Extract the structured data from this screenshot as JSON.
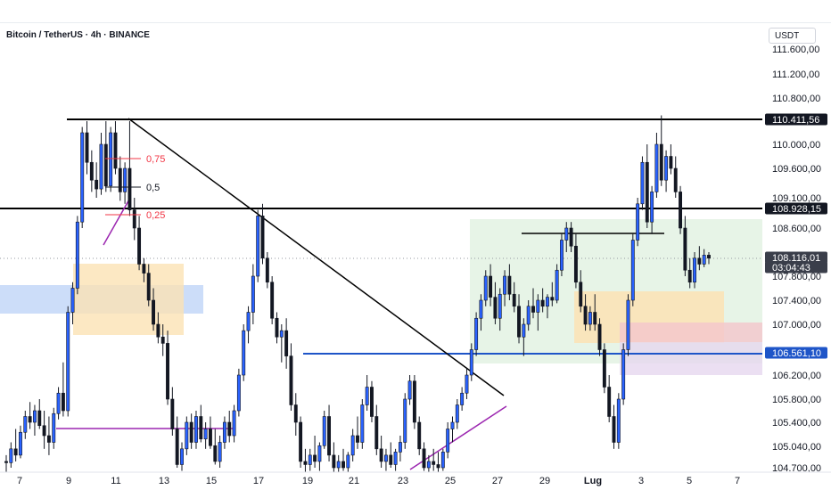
{
  "header": {
    "title": "Bitcoin / TetherUS · 4h · BINANCE",
    "currency": "USDT"
  },
  "colors": {
    "up": "#2962ff",
    "down": "#131722",
    "level_line": "#000000",
    "support_line": "#1e55c8",
    "trend_purple": "#9c27b0",
    "fib_red": "#f23645",
    "zone_orange": "#fbe2b4",
    "zone_blue": "#bbd2f7",
    "zone_green": "#d7ecd7",
    "zone_purple": "#e6d7ef",
    "zone_red": "#f4c6cc"
  },
  "chart_data": {
    "type": "candlestick",
    "ylim": [
      104700,
      111900
    ],
    "x_ticks": [
      "7",
      "9",
      "11",
      "13",
      "15",
      "17",
      "19",
      "21",
      "23",
      "25",
      "27",
      "29",
      "Lug",
      "3",
      "5",
      "7"
    ],
    "y_ticks": [
      "111.600,00",
      "111.200,00",
      "110.800,00",
      "110.000,00",
      "109.600,00",
      "109.100,00",
      "108.600,00",
      "107.800,00",
      "107.400,00",
      "107.000,00",
      "106.200,00",
      "105.800,00",
      "105.400,00",
      "105.040,00",
      "104.700,00"
    ],
    "price_tags": [
      {
        "label": "110.411,56",
        "value": 110411.56,
        "style": "dark-line"
      },
      {
        "label": "108.928,15",
        "value": 108928.15,
        "style": "dark-line"
      },
      {
        "label": "108.116,01",
        "value": 108116.01,
        "style": "current"
      },
      {
        "label": "03:04:43",
        "value": null,
        "style": "countdown"
      },
      {
        "label": "106.561,10",
        "value": 106561.1,
        "style": "blue-line"
      }
    ],
    "fib_labels": [
      {
        "label": "0,75",
        "value": 109700
      },
      {
        "label": "0,5",
        "value": 109350
      },
      {
        "label": "0,25",
        "value": 108950
      }
    ],
    "candles": [
      {
        "o": 104800,
        "h": 104900,
        "l": 104600,
        "c": 104780
      },
      {
        "o": 104780,
        "h": 105100,
        "l": 104700,
        "c": 105000
      },
      {
        "o": 105000,
        "h": 105300,
        "l": 104800,
        "c": 104900
      },
      {
        "o": 104900,
        "h": 105350,
        "l": 104850,
        "c": 105250
      },
      {
        "o": 105250,
        "h": 105600,
        "l": 105150,
        "c": 105500
      },
      {
        "o": 105500,
        "h": 105750,
        "l": 105300,
        "c": 105400
      },
      {
        "o": 105400,
        "h": 105700,
        "l": 105200,
        "c": 105600
      },
      {
        "o": 105600,
        "h": 105800,
        "l": 105300,
        "c": 105350
      },
      {
        "o": 105350,
        "h": 105600,
        "l": 105000,
        "c": 105200
      },
      {
        "o": 105200,
        "h": 105500,
        "l": 104900,
        "c": 105100
      },
      {
        "o": 105100,
        "h": 105650,
        "l": 105000,
        "c": 105550
      },
      {
        "o": 105550,
        "h": 106000,
        "l": 105450,
        "c": 105900
      },
      {
        "o": 105900,
        "h": 106400,
        "l": 105500,
        "c": 105600
      },
      {
        "o": 105600,
        "h": 107300,
        "l": 105500,
        "c": 107200
      },
      {
        "o": 107200,
        "h": 107700,
        "l": 107000,
        "c": 107600
      },
      {
        "o": 107600,
        "h": 108800,
        "l": 107500,
        "c": 108700
      },
      {
        "o": 108700,
        "h": 110300,
        "l": 108600,
        "c": 110200
      },
      {
        "o": 110200,
        "h": 110400,
        "l": 109500,
        "c": 109700
      },
      {
        "o": 109700,
        "h": 109900,
        "l": 109200,
        "c": 109400
      },
      {
        "o": 109400,
        "h": 109700,
        "l": 109100,
        "c": 109250
      },
      {
        "o": 109250,
        "h": 110200,
        "l": 109150,
        "c": 110000
      },
      {
        "o": 110000,
        "h": 110400,
        "l": 109200,
        "c": 109300
      },
      {
        "o": 109300,
        "h": 110300,
        "l": 109200,
        "c": 110200
      },
      {
        "o": 110200,
        "h": 110400,
        "l": 109500,
        "c": 109600
      },
      {
        "o": 109600,
        "h": 109800,
        "l": 109050,
        "c": 109200
      },
      {
        "o": 109200,
        "h": 109700,
        "l": 109000,
        "c": 109600
      },
      {
        "o": 109600,
        "h": 110400,
        "l": 108800,
        "c": 108900
      },
      {
        "o": 108900,
        "h": 109100,
        "l": 108400,
        "c": 108600
      },
      {
        "o": 108600,
        "h": 108800,
        "l": 107900,
        "c": 108000
      },
      {
        "o": 108000,
        "h": 108100,
        "l": 107700,
        "c": 107850
      },
      {
        "o": 107850,
        "h": 108000,
        "l": 107300,
        "c": 107400
      },
      {
        "o": 107400,
        "h": 107600,
        "l": 106900,
        "c": 107000
      },
      {
        "o": 107000,
        "h": 107200,
        "l": 106700,
        "c": 106800
      },
      {
        "o": 106800,
        "h": 107000,
        "l": 106500,
        "c": 106700
      },
      {
        "o": 106700,
        "h": 106900,
        "l": 105700,
        "c": 105800
      },
      {
        "o": 105800,
        "h": 106000,
        "l": 105200,
        "c": 105300
      },
      {
        "o": 105300,
        "h": 105500,
        "l": 104700,
        "c": 104750
      },
      {
        "o": 104750,
        "h": 105100,
        "l": 104650,
        "c": 105000
      },
      {
        "o": 105000,
        "h": 105500,
        "l": 104900,
        "c": 105400
      },
      {
        "o": 105400,
        "h": 105550,
        "l": 105000,
        "c": 105100
      },
      {
        "o": 105100,
        "h": 105600,
        "l": 105000,
        "c": 105500
      },
      {
        "o": 105500,
        "h": 105700,
        "l": 105100,
        "c": 105150
      },
      {
        "o": 105150,
        "h": 105400,
        "l": 105000,
        "c": 105300
      },
      {
        "o": 105300,
        "h": 105500,
        "l": 105000,
        "c": 105050
      },
      {
        "o": 105050,
        "h": 105300,
        "l": 104750,
        "c": 104800
      },
      {
        "o": 104800,
        "h": 105200,
        "l": 104700,
        "c": 105100
      },
      {
        "o": 105100,
        "h": 105500,
        "l": 105000,
        "c": 105400
      },
      {
        "o": 105400,
        "h": 105600,
        "l": 105100,
        "c": 105200
      },
      {
        "o": 105200,
        "h": 105700,
        "l": 105100,
        "c": 105600
      },
      {
        "o": 105600,
        "h": 106300,
        "l": 105500,
        "c": 106200
      },
      {
        "o": 106200,
        "h": 107000,
        "l": 106100,
        "c": 106900
      },
      {
        "o": 106900,
        "h": 107300,
        "l": 106700,
        "c": 107200
      },
      {
        "o": 107200,
        "h": 108000,
        "l": 107000,
        "c": 107800
      },
      {
        "o": 107800,
        "h": 108900,
        "l": 107700,
        "c": 108800
      },
      {
        "o": 108800,
        "h": 109000,
        "l": 108000,
        "c": 108100
      },
      {
        "o": 108100,
        "h": 108200,
        "l": 107600,
        "c": 107700
      },
      {
        "o": 107700,
        "h": 107800,
        "l": 107000,
        "c": 107100
      },
      {
        "o": 107100,
        "h": 107200,
        "l": 106700,
        "c": 106800
      },
      {
        "o": 106800,
        "h": 107000,
        "l": 106400,
        "c": 106900
      },
      {
        "o": 106900,
        "h": 107100,
        "l": 106300,
        "c": 106500
      },
      {
        "o": 106500,
        "h": 106700,
        "l": 105600,
        "c": 105700
      },
      {
        "o": 105700,
        "h": 105900,
        "l": 105200,
        "c": 105400
      },
      {
        "o": 105400,
        "h": 105500,
        "l": 104700,
        "c": 104800
      },
      {
        "o": 104800,
        "h": 105000,
        "l": 104600,
        "c": 104750
      },
      {
        "o": 104750,
        "h": 105000,
        "l": 104650,
        "c": 104900
      },
      {
        "o": 104900,
        "h": 105200,
        "l": 104700,
        "c": 104800
      },
      {
        "o": 104800,
        "h": 105100,
        "l": 104650,
        "c": 105050
      },
      {
        "o": 105050,
        "h": 105600,
        "l": 105000,
        "c": 105500
      },
      {
        "o": 105500,
        "h": 105700,
        "l": 104800,
        "c": 104900
      },
      {
        "o": 104900,
        "h": 105100,
        "l": 104600,
        "c": 104700
      },
      {
        "o": 104700,
        "h": 104900,
        "l": 104600,
        "c": 104800
      },
      {
        "o": 104800,
        "h": 105000,
        "l": 104650,
        "c": 104700
      },
      {
        "o": 104700,
        "h": 104950,
        "l": 104600,
        "c": 104900
      },
      {
        "o": 104900,
        "h": 105300,
        "l": 104800,
        "c": 105200
      },
      {
        "o": 105200,
        "h": 105500,
        "l": 105000,
        "c": 105100
      },
      {
        "o": 105100,
        "h": 105800,
        "l": 105000,
        "c": 105700
      },
      {
        "o": 105700,
        "h": 106200,
        "l": 105600,
        "c": 106000
      },
      {
        "o": 106000,
        "h": 106100,
        "l": 105400,
        "c": 105500
      },
      {
        "o": 105500,
        "h": 105700,
        "l": 104900,
        "c": 105000
      },
      {
        "o": 105000,
        "h": 105200,
        "l": 104700,
        "c": 104800
      },
      {
        "o": 104800,
        "h": 105000,
        "l": 104650,
        "c": 104900
      },
      {
        "o": 104900,
        "h": 105100,
        "l": 104700,
        "c": 104750
      },
      {
        "o": 104750,
        "h": 105000,
        "l": 104650,
        "c": 104950
      },
      {
        "o": 104950,
        "h": 105200,
        "l": 104800,
        "c": 105100
      },
      {
        "o": 105100,
        "h": 105900,
        "l": 105000,
        "c": 105800
      },
      {
        "o": 105800,
        "h": 106200,
        "l": 105700,
        "c": 106100
      },
      {
        "o": 106100,
        "h": 106200,
        "l": 105300,
        "c": 105400
      },
      {
        "o": 105400,
        "h": 105500,
        "l": 104900,
        "c": 105000
      },
      {
        "o": 105000,
        "h": 105100,
        "l": 104650,
        "c": 104700
      },
      {
        "o": 104700,
        "h": 104900,
        "l": 104600,
        "c": 104800
      },
      {
        "o": 104800,
        "h": 105000,
        "l": 104650,
        "c": 104750
      },
      {
        "o": 104750,
        "h": 104950,
        "l": 104600,
        "c": 104700
      },
      {
        "o": 104700,
        "h": 105000,
        "l": 104650,
        "c": 104950
      },
      {
        "o": 104950,
        "h": 105400,
        "l": 104850,
        "c": 105300
      },
      {
        "o": 105300,
        "h": 105500,
        "l": 105100,
        "c": 105400
      },
      {
        "o": 105400,
        "h": 105800,
        "l": 105300,
        "c": 105700
      },
      {
        "o": 105700,
        "h": 106000,
        "l": 105600,
        "c": 105900
      },
      {
        "o": 105900,
        "h": 106300,
        "l": 105800,
        "c": 106200
      },
      {
        "o": 106200,
        "h": 106700,
        "l": 106100,
        "c": 106600
      },
      {
        "o": 106600,
        "h": 107200,
        "l": 106500,
        "c": 107100
      },
      {
        "o": 107100,
        "h": 107500,
        "l": 106900,
        "c": 107400
      },
      {
        "o": 107400,
        "h": 107900,
        "l": 107300,
        "c": 107800
      },
      {
        "o": 107800,
        "h": 108000,
        "l": 107300,
        "c": 107450
      },
      {
        "o": 107450,
        "h": 107700,
        "l": 107000,
        "c": 107100
      },
      {
        "o": 107100,
        "h": 107600,
        "l": 106900,
        "c": 107500
      },
      {
        "o": 107500,
        "h": 107900,
        "l": 107300,
        "c": 107800
      },
      {
        "o": 107800,
        "h": 108000,
        "l": 107400,
        "c": 107500
      },
      {
        "o": 107500,
        "h": 107700,
        "l": 107200,
        "c": 107300
      },
      {
        "o": 107300,
        "h": 107500,
        "l": 106700,
        "c": 106800
      },
      {
        "o": 106800,
        "h": 107100,
        "l": 106500,
        "c": 107000
      },
      {
        "o": 107000,
        "h": 107400,
        "l": 106900,
        "c": 107300
      },
      {
        "o": 107300,
        "h": 107600,
        "l": 107100,
        "c": 107200
      },
      {
        "o": 107200,
        "h": 107500,
        "l": 106900,
        "c": 107400
      },
      {
        "o": 107400,
        "h": 107600,
        "l": 107200,
        "c": 107300
      },
      {
        "o": 107300,
        "h": 107500,
        "l": 107100,
        "c": 107450
      },
      {
        "o": 107450,
        "h": 107700,
        "l": 107300,
        "c": 107400
      },
      {
        "o": 107400,
        "h": 108000,
        "l": 107350,
        "c": 107900
      },
      {
        "o": 107900,
        "h": 108500,
        "l": 107800,
        "c": 108400
      },
      {
        "o": 108400,
        "h": 108700,
        "l": 108200,
        "c": 108600
      },
      {
        "o": 108600,
        "h": 108700,
        "l": 108200,
        "c": 108300
      },
      {
        "o": 108300,
        "h": 108500,
        "l": 107600,
        "c": 107700
      },
      {
        "o": 107700,
        "h": 107900,
        "l": 107200,
        "c": 107300
      },
      {
        "o": 107300,
        "h": 107500,
        "l": 106900,
        "c": 107000
      },
      {
        "o": 107000,
        "h": 107300,
        "l": 106900,
        "c": 107200
      },
      {
        "o": 107200,
        "h": 107500,
        "l": 106900,
        "c": 107000
      },
      {
        "o": 107000,
        "h": 107100,
        "l": 106500,
        "c": 106600
      },
      {
        "o": 106600,
        "h": 106700,
        "l": 105900,
        "c": 106000
      },
      {
        "o": 106000,
        "h": 106200,
        "l": 105400,
        "c": 105500
      },
      {
        "o": 105500,
        "h": 105700,
        "l": 105000,
        "c": 105100
      },
      {
        "o": 105100,
        "h": 105900,
        "l": 105000,
        "c": 105800
      },
      {
        "o": 105800,
        "h": 106700,
        "l": 105700,
        "c": 106600
      },
      {
        "o": 106600,
        "h": 107500,
        "l": 106500,
        "c": 107400
      },
      {
        "o": 107400,
        "h": 108500,
        "l": 107300,
        "c": 108400
      },
      {
        "o": 108400,
        "h": 109100,
        "l": 108300,
        "c": 109000
      },
      {
        "o": 109000,
        "h": 109800,
        "l": 108900,
        "c": 109700
      },
      {
        "o": 109700,
        "h": 110000,
        "l": 108600,
        "c": 108700
      },
      {
        "o": 108700,
        "h": 109300,
        "l": 108500,
        "c": 109200
      },
      {
        "o": 109200,
        "h": 110200,
        "l": 109100,
        "c": 110000
      },
      {
        "o": 110000,
        "h": 110500,
        "l": 109300,
        "c": 109400
      },
      {
        "o": 109400,
        "h": 109900,
        "l": 109200,
        "c": 109800
      },
      {
        "o": 109800,
        "h": 110000,
        "l": 109500,
        "c": 109600
      },
      {
        "o": 109600,
        "h": 109800,
        "l": 109100,
        "c": 109200
      },
      {
        "o": 109200,
        "h": 109300,
        "l": 108500,
        "c": 108600
      },
      {
        "o": 108600,
        "h": 108800,
        "l": 107800,
        "c": 107900
      },
      {
        "o": 107900,
        "h": 108100,
        "l": 107600,
        "c": 107700
      },
      {
        "o": 107700,
        "h": 108200,
        "l": 107600,
        "c": 108100
      },
      {
        "o": 108100,
        "h": 108300,
        "l": 107900,
        "c": 108000
      },
      {
        "o": 108000,
        "h": 108250,
        "l": 107950,
        "c": 108150
      },
      {
        "o": 108150,
        "h": 108200,
        "l": 108000,
        "c": 108100
      }
    ]
  }
}
